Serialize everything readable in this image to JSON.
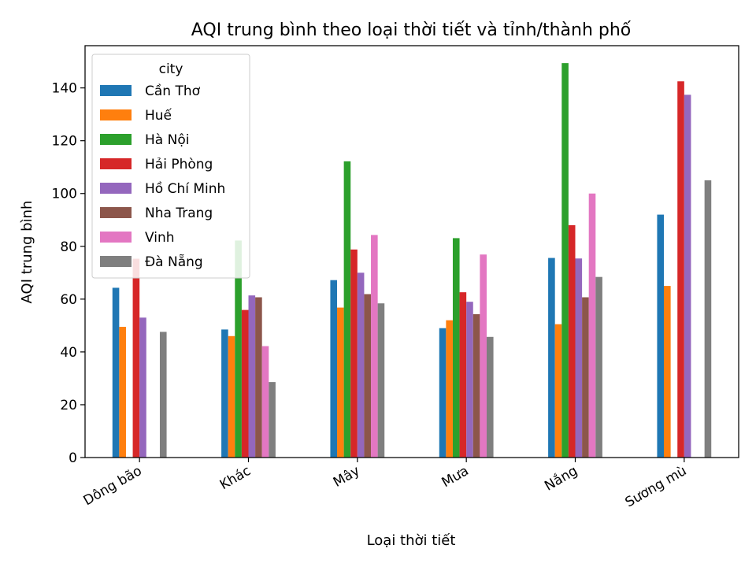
{
  "chart_data": {
    "type": "bar",
    "title": "AQI trung bình theo loại thời tiết và tỉnh/thành phố",
    "xlabel": "Loại thời tiết",
    "ylabel": "AQI trung bình",
    "categories": [
      "Dông bão",
      "Khác",
      "Mây",
      "Mưa",
      "Nắng",
      "Sương mù"
    ],
    "ylim": [
      0,
      156
    ],
    "yticks": [
      0,
      20,
      40,
      60,
      80,
      100,
      120,
      140
    ],
    "grid": false,
    "legend": {
      "title": "city",
      "placement": "top-left"
    },
    "series": [
      {
        "name": "Cần Thơ",
        "color": "#1f77b4",
        "values": [
          64.3,
          48.5,
          67.2,
          49,
          75.6,
          92
        ]
      },
      {
        "name": "Huế",
        "color": "#ff7f0e",
        "values": [
          49.5,
          46,
          56.8,
          52,
          50.5,
          65
        ]
      },
      {
        "name": "Hà Nội",
        "color": "#2ca02c",
        "values": [
          null,
          82.2,
          112.2,
          83.1,
          149.4,
          null
        ]
      },
      {
        "name": "Hải Phòng",
        "color": "#d62728",
        "values": [
          75.3,
          55.9,
          78.8,
          62.6,
          88,
          142.5
        ]
      },
      {
        "name": "Hồ Chí Minh",
        "color": "#9467bd",
        "values": [
          53,
          61.4,
          70,
          59,
          75.4,
          137.4
        ]
      },
      {
        "name": "Nha Trang",
        "color": "#8c564b",
        "values": [
          null,
          60.7,
          61.9,
          54.3,
          60.7,
          null
        ]
      },
      {
        "name": "Vinh",
        "color": "#e377c2",
        "values": [
          null,
          42.2,
          84.3,
          76.9,
          100,
          null
        ]
      },
      {
        "name": "Đà Nẵng",
        "color": "#7f7f7f",
        "values": [
          47.6,
          28.6,
          58.4,
          45.7,
          68.4,
          105
        ]
      }
    ]
  }
}
